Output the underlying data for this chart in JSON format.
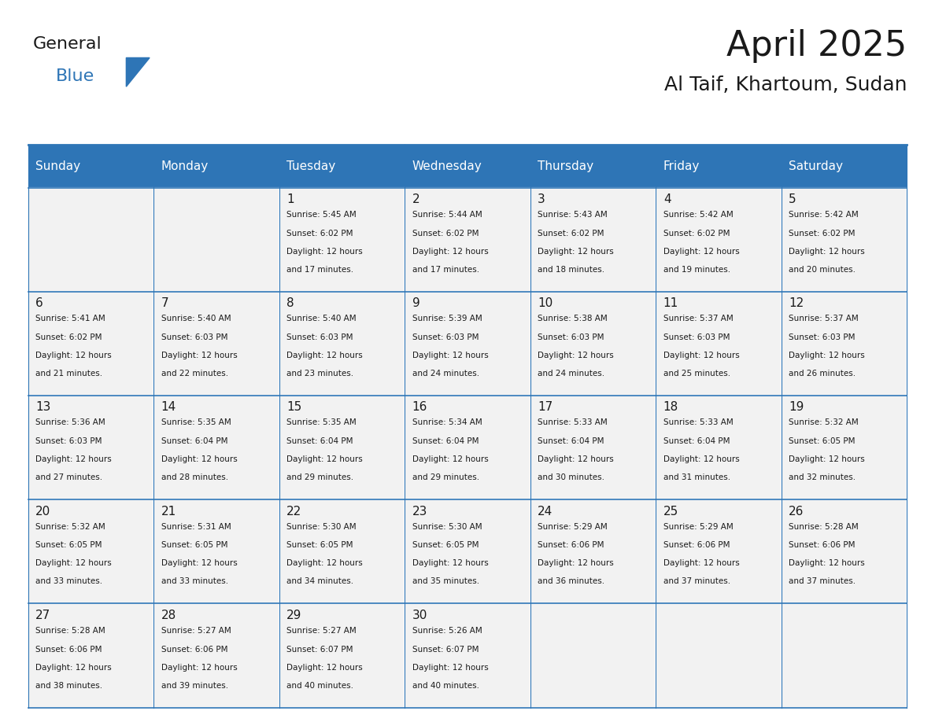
{
  "title": "April 2025",
  "subtitle": "Al Taif, Khartoum, Sudan",
  "header_color": "#2E75B6",
  "header_text_color": "#FFFFFF",
  "cell_bg_even": "#F2F2F2",
  "cell_bg_odd": "#FFFFFF",
  "cell_border_color": "#2E75B6",
  "days_of_week": [
    "Sunday",
    "Monday",
    "Tuesday",
    "Wednesday",
    "Thursday",
    "Friday",
    "Saturday"
  ],
  "weeks": [
    [
      {
        "day": "",
        "sunrise": "",
        "sunset": "",
        "daylight": ""
      },
      {
        "day": "",
        "sunrise": "",
        "sunset": "",
        "daylight": ""
      },
      {
        "day": "1",
        "sunrise": "Sunrise: 5:45 AM",
        "sunset": "Sunset: 6:02 PM",
        "daylight": "Daylight: 12 hours\nand 17 minutes."
      },
      {
        "day": "2",
        "sunrise": "Sunrise: 5:44 AM",
        "sunset": "Sunset: 6:02 PM",
        "daylight": "Daylight: 12 hours\nand 17 minutes."
      },
      {
        "day": "3",
        "sunrise": "Sunrise: 5:43 AM",
        "sunset": "Sunset: 6:02 PM",
        "daylight": "Daylight: 12 hours\nand 18 minutes."
      },
      {
        "day": "4",
        "sunrise": "Sunrise: 5:42 AM",
        "sunset": "Sunset: 6:02 PM",
        "daylight": "Daylight: 12 hours\nand 19 minutes."
      },
      {
        "day": "5",
        "sunrise": "Sunrise: 5:42 AM",
        "sunset": "Sunset: 6:02 PM",
        "daylight": "Daylight: 12 hours\nand 20 minutes."
      }
    ],
    [
      {
        "day": "6",
        "sunrise": "Sunrise: 5:41 AM",
        "sunset": "Sunset: 6:02 PM",
        "daylight": "Daylight: 12 hours\nand 21 minutes."
      },
      {
        "day": "7",
        "sunrise": "Sunrise: 5:40 AM",
        "sunset": "Sunset: 6:03 PM",
        "daylight": "Daylight: 12 hours\nand 22 minutes."
      },
      {
        "day": "8",
        "sunrise": "Sunrise: 5:40 AM",
        "sunset": "Sunset: 6:03 PM",
        "daylight": "Daylight: 12 hours\nand 23 minutes."
      },
      {
        "day": "9",
        "sunrise": "Sunrise: 5:39 AM",
        "sunset": "Sunset: 6:03 PM",
        "daylight": "Daylight: 12 hours\nand 24 minutes."
      },
      {
        "day": "10",
        "sunrise": "Sunrise: 5:38 AM",
        "sunset": "Sunset: 6:03 PM",
        "daylight": "Daylight: 12 hours\nand 24 minutes."
      },
      {
        "day": "11",
        "sunrise": "Sunrise: 5:37 AM",
        "sunset": "Sunset: 6:03 PM",
        "daylight": "Daylight: 12 hours\nand 25 minutes."
      },
      {
        "day": "12",
        "sunrise": "Sunrise: 5:37 AM",
        "sunset": "Sunset: 6:03 PM",
        "daylight": "Daylight: 12 hours\nand 26 minutes."
      }
    ],
    [
      {
        "day": "13",
        "sunrise": "Sunrise: 5:36 AM",
        "sunset": "Sunset: 6:03 PM",
        "daylight": "Daylight: 12 hours\nand 27 minutes."
      },
      {
        "day": "14",
        "sunrise": "Sunrise: 5:35 AM",
        "sunset": "Sunset: 6:04 PM",
        "daylight": "Daylight: 12 hours\nand 28 minutes."
      },
      {
        "day": "15",
        "sunrise": "Sunrise: 5:35 AM",
        "sunset": "Sunset: 6:04 PM",
        "daylight": "Daylight: 12 hours\nand 29 minutes."
      },
      {
        "day": "16",
        "sunrise": "Sunrise: 5:34 AM",
        "sunset": "Sunset: 6:04 PM",
        "daylight": "Daylight: 12 hours\nand 29 minutes."
      },
      {
        "day": "17",
        "sunrise": "Sunrise: 5:33 AM",
        "sunset": "Sunset: 6:04 PM",
        "daylight": "Daylight: 12 hours\nand 30 minutes."
      },
      {
        "day": "18",
        "sunrise": "Sunrise: 5:33 AM",
        "sunset": "Sunset: 6:04 PM",
        "daylight": "Daylight: 12 hours\nand 31 minutes."
      },
      {
        "day": "19",
        "sunrise": "Sunrise: 5:32 AM",
        "sunset": "Sunset: 6:05 PM",
        "daylight": "Daylight: 12 hours\nand 32 minutes."
      }
    ],
    [
      {
        "day": "20",
        "sunrise": "Sunrise: 5:32 AM",
        "sunset": "Sunset: 6:05 PM",
        "daylight": "Daylight: 12 hours\nand 33 minutes."
      },
      {
        "day": "21",
        "sunrise": "Sunrise: 5:31 AM",
        "sunset": "Sunset: 6:05 PM",
        "daylight": "Daylight: 12 hours\nand 33 minutes."
      },
      {
        "day": "22",
        "sunrise": "Sunrise: 5:30 AM",
        "sunset": "Sunset: 6:05 PM",
        "daylight": "Daylight: 12 hours\nand 34 minutes."
      },
      {
        "day": "23",
        "sunrise": "Sunrise: 5:30 AM",
        "sunset": "Sunset: 6:05 PM",
        "daylight": "Daylight: 12 hours\nand 35 minutes."
      },
      {
        "day": "24",
        "sunrise": "Sunrise: 5:29 AM",
        "sunset": "Sunset: 6:06 PM",
        "daylight": "Daylight: 12 hours\nand 36 minutes."
      },
      {
        "day": "25",
        "sunrise": "Sunrise: 5:29 AM",
        "sunset": "Sunset: 6:06 PM",
        "daylight": "Daylight: 12 hours\nand 37 minutes."
      },
      {
        "day": "26",
        "sunrise": "Sunrise: 5:28 AM",
        "sunset": "Sunset: 6:06 PM",
        "daylight": "Daylight: 12 hours\nand 37 minutes."
      }
    ],
    [
      {
        "day": "27",
        "sunrise": "Sunrise: 5:28 AM",
        "sunset": "Sunset: 6:06 PM",
        "daylight": "Daylight: 12 hours\nand 38 minutes."
      },
      {
        "day": "28",
        "sunrise": "Sunrise: 5:27 AM",
        "sunset": "Sunset: 6:06 PM",
        "daylight": "Daylight: 12 hours\nand 39 minutes."
      },
      {
        "day": "29",
        "sunrise": "Sunrise: 5:27 AM",
        "sunset": "Sunset: 6:07 PM",
        "daylight": "Daylight: 12 hours\nand 40 minutes."
      },
      {
        "day": "30",
        "sunrise": "Sunrise: 5:26 AM",
        "sunset": "Sunset: 6:07 PM",
        "daylight": "Daylight: 12 hours\nand 40 minutes."
      },
      {
        "day": "",
        "sunrise": "",
        "sunset": "",
        "daylight": ""
      },
      {
        "day": "",
        "sunrise": "",
        "sunset": "",
        "daylight": ""
      },
      {
        "day": "",
        "sunrise": "",
        "sunset": "",
        "daylight": ""
      }
    ]
  ],
  "logo_text_general": "General",
  "logo_text_blue": "Blue",
  "logo_color_general": "#1a1a1a",
  "logo_color_blue": "#2E75B6"
}
